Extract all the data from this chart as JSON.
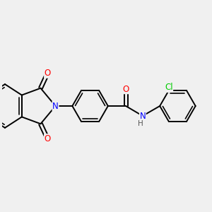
{
  "bg_color": "#f0f0f0",
  "atom_colors": {
    "C": "#000000",
    "N": "#0000ff",
    "O": "#ff0000",
    "Cl": "#00cc00",
    "H": "#666666"
  },
  "bond_color": "#000000",
  "bond_width": 1.4,
  "font_size_atoms": 8.5,
  "font_size_h": 7.5,
  "xlim": [
    -1.0,
    9.5
  ],
  "ylim": [
    -3.5,
    3.5
  ],
  "figsize": [
    3.0,
    3.0
  ],
  "dpi": 100
}
